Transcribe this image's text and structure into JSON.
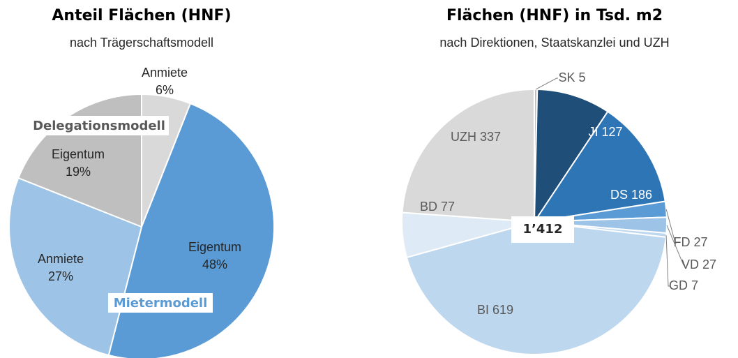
{
  "chart_data": [
    {
      "type": "pie",
      "title": "Anteil Flächen (HNF)",
      "subtitle": "nach Trägerschaftsmodell",
      "categories": [
        "Anmiete",
        "Eigentum",
        "Anmiete",
        "Eigentum"
      ],
      "values": [
        6,
        48,
        27,
        19
      ],
      "value_labels": [
        "6%",
        "48%",
        "27%",
        "19%"
      ],
      "colors": [
        "#d9d9d9",
        "#5b9bd5",
        "#9dc3e6",
        "#bfbfbf"
      ],
      "annotations": [
        "Delegationsmodell",
        "Mietermodell"
      ]
    },
    {
      "type": "pie",
      "title": "Flächen (HNF) in Tsd. m2",
      "subtitle": "nach Direktionen, Staatskanzlei und UZH",
      "categories": [
        "SK",
        "JI",
        "DS",
        "FD",
        "VD",
        "GD",
        "BI",
        "BD",
        "UZH"
      ],
      "values": [
        5,
        127,
        186,
        27,
        27,
        7,
        619,
        77,
        337
      ],
      "colors": [
        "#bfbfbf",
        "#1f4e79",
        "#2e75b6",
        "#5b9bd5",
        "#9dc3e6",
        "#bdd7ee",
        "#bdd7ee",
        "#deebf7",
        "#d9d9d9"
      ],
      "total_label": "1’412"
    }
  ]
}
